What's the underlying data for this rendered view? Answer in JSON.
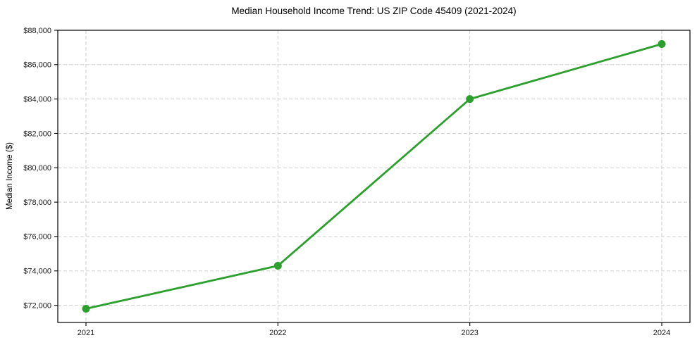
{
  "chart_data": {
    "type": "line",
    "title": "Median Household Income Trend: US ZIP Code 45409 (2021-2024)",
    "xlabel": "",
    "ylabel": "Median Income ($)",
    "categories": [
      "2021",
      "2022",
      "2023",
      "2024"
    ],
    "series": [
      {
        "values": [
          71800,
          74300,
          84000,
          87200
        ],
        "color": "#2ca02c",
        "marker": "circle"
      }
    ],
    "ylim": [
      71000,
      88000
    ],
    "yticks": [
      72000,
      74000,
      76000,
      78000,
      80000,
      82000,
      84000,
      86000,
      88000
    ],
    "ytick_labels": [
      "$72,000",
      "$74,000",
      "$76,000",
      "$78,000",
      "$80,000",
      "$82,000",
      "$84,000",
      "$86,000",
      "$88,000"
    ],
    "grid": "dashed",
    "grid_color": "#c9c9c9",
    "spine_color": "#000000",
    "legend": "none"
  }
}
